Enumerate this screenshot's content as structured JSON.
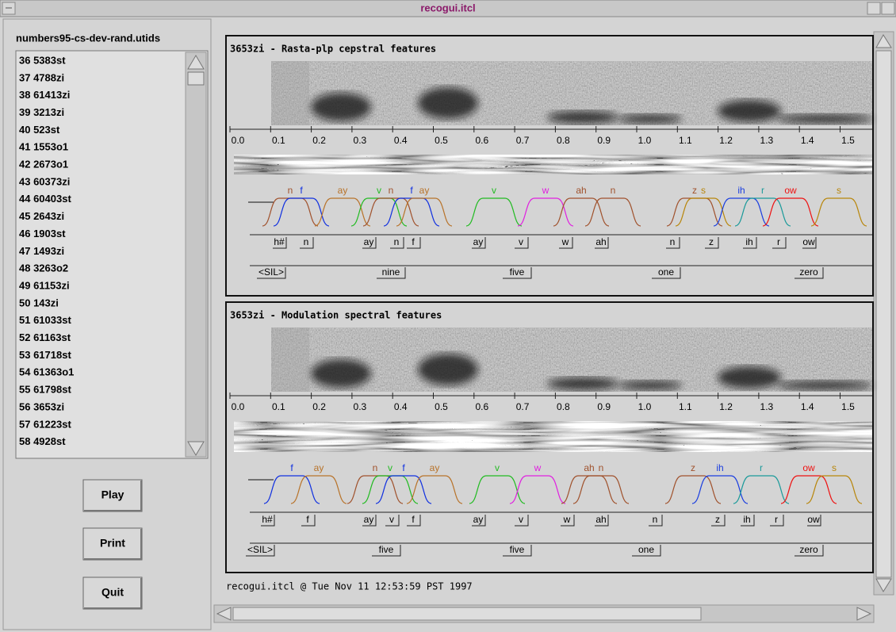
{
  "window": {
    "title": "recogui.itcl"
  },
  "sidebar": {
    "title": "numbers95-cs-dev-rand.utids",
    "items": [
      "36 5383st",
      "37 4788zi",
      "38 61413zi",
      "39 3213zi",
      "40 523st",
      "41 1553o1",
      "42 2673o1",
      "43 60373zi",
      "44 60403st",
      "45 2643zi",
      "46 1903st",
      "47 1493zi",
      "48 3263o2",
      "49 61153zi",
      "50 143zi",
      "51 61033st",
      "52 61163st",
      "53 61718st",
      "54 61363o1",
      "55 61798st",
      "56 3653zi",
      "57 61223st",
      "58 4928st"
    ]
  },
  "buttons": [
    "Play",
    "Print",
    "Quit"
  ],
  "panels": [
    {
      "title": "3653zi - Rasta-plp cepstral features",
      "time_ticks": [
        "0.0",
        "0.1",
        "0.2",
        "0.3",
        "0.4",
        "0.5",
        "0.6",
        "0.7",
        "0.8",
        "0.9",
        "1.0",
        "1.1",
        "1.2",
        "1.3",
        "1.4",
        "1.5"
      ],
      "phone_scores": [
        {
          "label": "n",
          "color": "#a0522d"
        },
        {
          "label": "f",
          "color": "#1030e0"
        },
        {
          "label": "ay",
          "color": "#b8732a"
        },
        {
          "label": "v",
          "color": "#22bb22"
        },
        {
          "label": "n",
          "color": "#a0522d"
        },
        {
          "label": "f",
          "color": "#1030e0"
        },
        {
          "label": "ay",
          "color": "#b8732a"
        },
        {
          "label": "v",
          "color": "#22bb22"
        },
        {
          "label": "w",
          "color": "#e020e0"
        },
        {
          "label": "ah",
          "color": "#a0522d"
        },
        {
          "label": "n",
          "color": "#a0522d"
        },
        {
          "label": "z",
          "color": "#a0522d"
        },
        {
          "label": "s",
          "color": "#b8860b"
        },
        {
          "label": "ih",
          "color": "#1a3ee0"
        },
        {
          "label": "r",
          "color": "#1a9a9a"
        },
        {
          "label": "ow",
          "color": "#ee1111"
        },
        {
          "label": "s",
          "color": "#b8860b"
        }
      ],
      "phones": [
        "h#",
        "n",
        "ay",
        "n",
        "f",
        "ay",
        "v",
        "w",
        "ah",
        "n",
        "z",
        "ih",
        "r",
        "ow"
      ],
      "words": [
        "<SIL>",
        "nine",
        "five",
        "one",
        "zero"
      ]
    },
    {
      "title": "3653zi - Modulation spectral features",
      "time_ticks": [
        "0.0",
        "0.1",
        "0.2",
        "0.3",
        "0.4",
        "0.5",
        "0.6",
        "0.7",
        "0.8",
        "0.9",
        "1.0",
        "1.1",
        "1.2",
        "1.3",
        "1.4",
        "1.5"
      ],
      "phone_scores": [
        {
          "label": "f",
          "color": "#1030e0"
        },
        {
          "label": "ay",
          "color": "#b8732a"
        },
        {
          "label": "n",
          "color": "#a0522d"
        },
        {
          "label": "v",
          "color": "#22bb22"
        },
        {
          "label": "f",
          "color": "#1030e0"
        },
        {
          "label": "ay",
          "color": "#b8732a"
        },
        {
          "label": "v",
          "color": "#22bb22"
        },
        {
          "label": "w",
          "color": "#e020e0"
        },
        {
          "label": "ah",
          "color": "#a0522d"
        },
        {
          "label": "n",
          "color": "#a0522d"
        },
        {
          "label": "z",
          "color": "#a0522d"
        },
        {
          "label": "ih",
          "color": "#1a3ee0"
        },
        {
          "label": "r",
          "color": "#1a9a9a"
        },
        {
          "label": "ow",
          "color": "#ee1111"
        },
        {
          "label": "s",
          "color": "#b8860b"
        }
      ],
      "phones": [
        "h#",
        "f",
        "ay",
        "v",
        "f",
        "ay",
        "v",
        "w",
        "ah",
        "n",
        "z",
        "ih",
        "r",
        "ow"
      ],
      "words": [
        "<SIL>",
        "five",
        "five",
        "one",
        "zero"
      ]
    }
  ],
  "status": "recogui.itcl @ Tue Nov 11 12:53:59 PST 1997"
}
